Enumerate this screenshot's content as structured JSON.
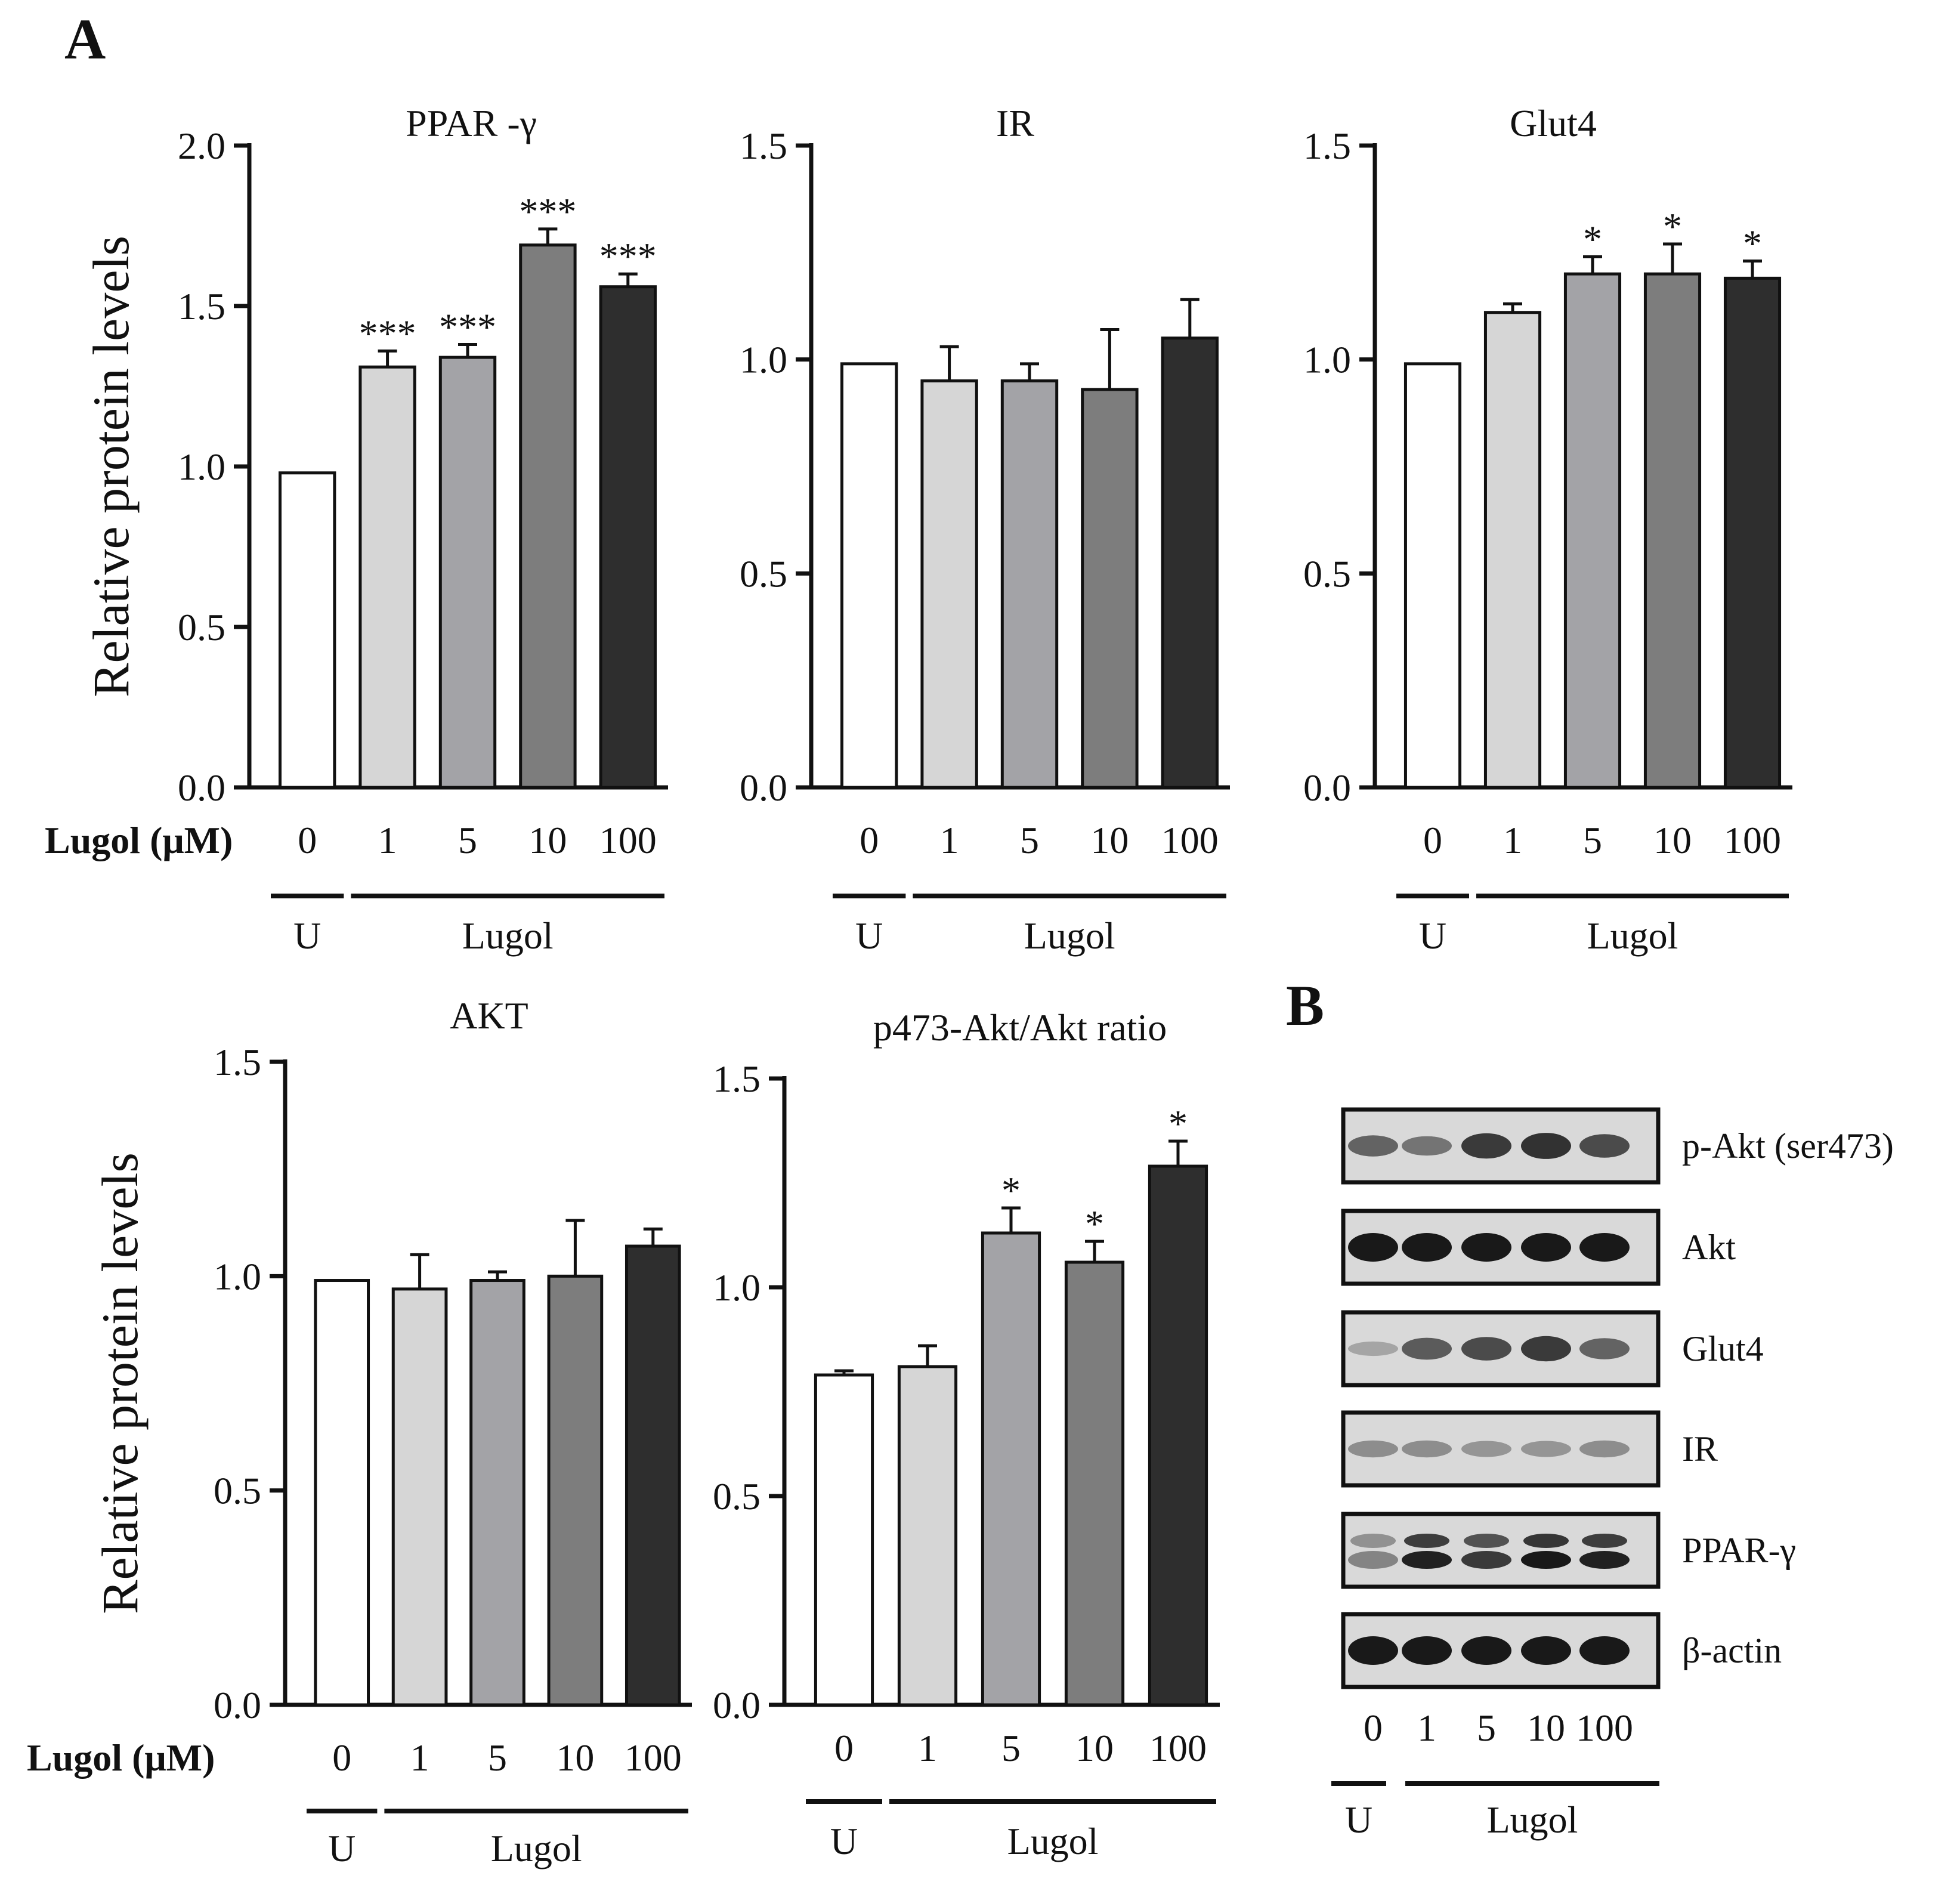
{
  "panel_labels": {
    "a": "A",
    "b": "B"
  },
  "colors": {
    "untreated": "#ffffff",
    "dose_1": "#d6d6d6",
    "dose_5": "#a3a3a7",
    "dose_10": "#7d7d7d",
    "dose_100": "#2e2e2e"
  },
  "chart_data": [
    {
      "type": "bar",
      "title": "PPAR  -γ",
      "ylabel": "Relative protein levels",
      "row_label": "Lugol (μM)",
      "categories": [
        "0",
        "1",
        "5",
        "10",
        "100"
      ],
      "values": [
        0.98,
        1.31,
        1.34,
        1.69,
        1.56
      ],
      "errors": [
        0,
        0.05,
        0.04,
        0.05,
        0.04
      ],
      "significance": [
        "",
        "***",
        "***",
        "***",
        "***"
      ],
      "ylim": [
        0,
        2.0
      ],
      "yticks": [
        "0.0",
        "0.5",
        "1.0",
        "1.5",
        "2.0"
      ],
      "groups": [
        {
          "label": "U",
          "from": 0,
          "to": 0
        },
        {
          "label": "Lugol",
          "from": 1,
          "to": 4
        }
      ]
    },
    {
      "type": "bar",
      "title": "IR",
      "ylabel": "",
      "row_label": "",
      "categories": [
        "0",
        "1",
        "5",
        "10",
        "100"
      ],
      "values": [
        0.99,
        0.95,
        0.95,
        0.93,
        1.05
      ],
      "errors": [
        0,
        0.08,
        0.04,
        0.14,
        0.09
      ],
      "significance": [
        "",
        "",
        "",
        "",
        ""
      ],
      "ylim": [
        0,
        1.5
      ],
      "yticks": [
        "0.0",
        "0.5",
        "1.0",
        "1.5"
      ],
      "groups": [
        {
          "label": "U",
          "from": 0,
          "to": 0
        },
        {
          "label": "Lugol",
          "from": 1,
          "to": 4
        }
      ]
    },
    {
      "type": "bar",
      "title": "Glut4",
      "ylabel": "",
      "row_label": "",
      "categories": [
        "0",
        "1",
        "5",
        "10",
        "100"
      ],
      "values": [
        0.99,
        1.11,
        1.2,
        1.2,
        1.19
      ],
      "errors": [
        0,
        0.02,
        0.04,
        0.07,
        0.04
      ],
      "significance": [
        "",
        "",
        "*",
        "*",
        "*"
      ],
      "ylim": [
        0,
        1.5
      ],
      "yticks": [
        "0.0",
        "0.5",
        "1.0",
        "1.5"
      ],
      "groups": [
        {
          "label": "U",
          "from": 0,
          "to": 0
        },
        {
          "label": "Lugol",
          "from": 1,
          "to": 4
        }
      ]
    },
    {
      "type": "bar",
      "title": "AKT",
      "ylabel": "Relative protein levels",
      "row_label": "Lugol (μM)",
      "categories": [
        "0",
        "1",
        "5",
        "10",
        "100"
      ],
      "values": [
        0.99,
        0.97,
        0.99,
        1.0,
        1.07
      ],
      "errors": [
        0,
        0.08,
        0.02,
        0.13,
        0.04
      ],
      "significance": [
        "",
        "",
        "",
        "",
        ""
      ],
      "ylim": [
        0,
        1.5
      ],
      "yticks": [
        "0.0",
        "0.5",
        "1.0",
        "1.5"
      ],
      "groups": [
        {
          "label": "U",
          "from": 0,
          "to": 0
        },
        {
          "label": "Lugol",
          "from": 1,
          "to": 4
        }
      ]
    },
    {
      "type": "bar",
      "title": "p473-Akt/Akt ratio",
      "ylabel": "",
      "row_label": "",
      "categories": [
        "0",
        "1",
        "5",
        "10",
        "100"
      ],
      "values": [
        0.79,
        0.81,
        1.13,
        1.06,
        1.29
      ],
      "errors": [
        0.01,
        0.05,
        0.06,
        0.05,
        0.06
      ],
      "significance": [
        "",
        "",
        "*",
        "*",
        "*"
      ],
      "ylim": [
        0,
        1.5
      ],
      "yticks": [
        "0.0",
        "0.5",
        "1.0",
        "1.5"
      ],
      "groups": [
        {
          "label": "U",
          "from": 0,
          "to": 0
        },
        {
          "label": "Lugol",
          "from": 1,
          "to": 4
        }
      ]
    }
  ],
  "blot": {
    "rows": [
      {
        "label": "p-Akt (ser473)",
        "intensity": [
          0.55,
          0.45,
          0.8,
          0.85,
          0.7
        ],
        "doublet": false
      },
      {
        "label": "Akt",
        "intensity": [
          1.0,
          1.0,
          1.0,
          1.0,
          1.0
        ],
        "doublet": false
      },
      {
        "label": "Glut4",
        "intensity": [
          0.15,
          0.6,
          0.7,
          0.8,
          0.55
        ],
        "doublet": false
      },
      {
        "label": "IR",
        "intensity": [
          0.3,
          0.3,
          0.25,
          0.25,
          0.3
        ],
        "doublet": false
      },
      {
        "label": "PPAR-γ",
        "intensity": [
          0.35,
          0.95,
          0.8,
          1.0,
          0.95
        ],
        "doublet": true
      },
      {
        "label": "β-actin",
        "intensity": [
          1.0,
          1.0,
          1.0,
          1.0,
          1.0
        ],
        "doublet": false
      }
    ],
    "lanes": [
      "0",
      "1",
      "5",
      "10",
      "100"
    ],
    "groups": [
      {
        "label": "U",
        "from": 0,
        "to": 0
      },
      {
        "label": "Lugol",
        "from": 1,
        "to": 4
      }
    ]
  }
}
